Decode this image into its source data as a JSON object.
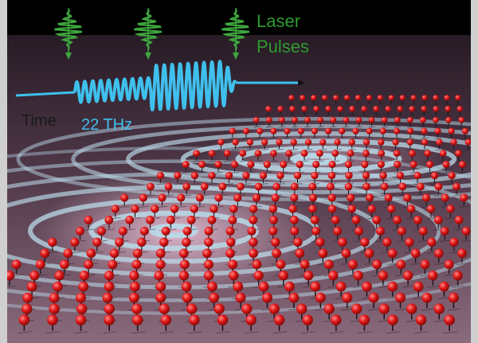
{
  "labels": {
    "laser": "Laser",
    "pulses": "Pulses",
    "time": "Time",
    "frequency": "22 THz"
  },
  "colors": {
    "background": "#cfcfcf",
    "top_band": "#000000",
    "surface_far": "#241822",
    "surface_near": "#8a6a7c",
    "pulse_green": "#3ea63e",
    "label_green": "#2f9b2f",
    "waveform_cyan": "#3fc0ec",
    "time_text": "#1a1a1a",
    "ring_color": "#b9d8e6",
    "spin_red": "#e01616"
  },
  "icons": [
    "laser-pulse-icon",
    "time-arrow-icon",
    "spin-icon"
  ],
  "pulse_count": 3,
  "ring_sources": 2
}
